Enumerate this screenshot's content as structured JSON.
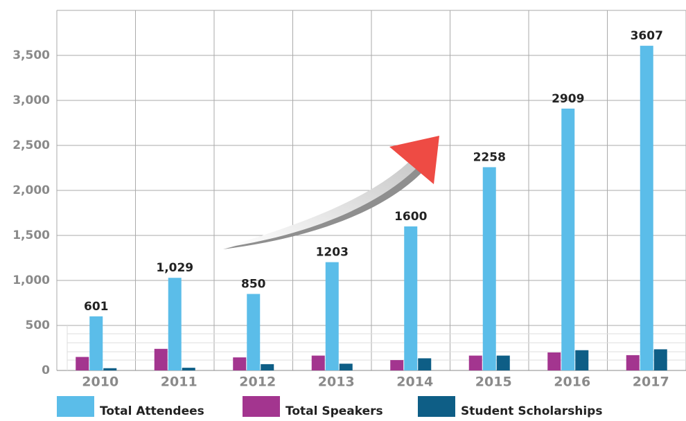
{
  "chart_data": {
    "type": "bar",
    "categories": [
      "2010",
      "2011",
      "2012",
      "2013",
      "2014",
      "2015",
      "2016",
      "2017"
    ],
    "series": [
      {
        "name": "Total Attendees",
        "color": "#5bbde9",
        "values": [
          601,
          1029,
          850,
          1203,
          1600,
          2258,
          2909,
          3607
        ],
        "value_labels": [
          "601",
          "1,029",
          "850",
          "1203",
          "1600",
          "2258",
          "2909",
          "3607"
        ]
      },
      {
        "name": "Total Speakers",
        "color": "#a3358f",
        "values": [
          150,
          240,
          145,
          165,
          115,
          165,
          200,
          170
        ]
      },
      {
        "name": "Student Scholarships",
        "color": "#0e5e86",
        "values": [
          25,
          30,
          70,
          75,
          135,
          165,
          225,
          235
        ]
      }
    ],
    "ylim": [
      0,
      4000
    ],
    "yticks": [
      0,
      500,
      {
        "value": 1000,
        "label": "1,000"
      },
      {
        "value": 1500,
        "label": "1,500"
      },
      {
        "value": 2000,
        "label": "2,000"
      },
      {
        "value": 2500,
        "label": "2,500"
      },
      {
        "value": 3000,
        "label": "3,000"
      },
      {
        "value": 3500,
        "label": "3,500"
      }
    ],
    "grid": true
  }
}
